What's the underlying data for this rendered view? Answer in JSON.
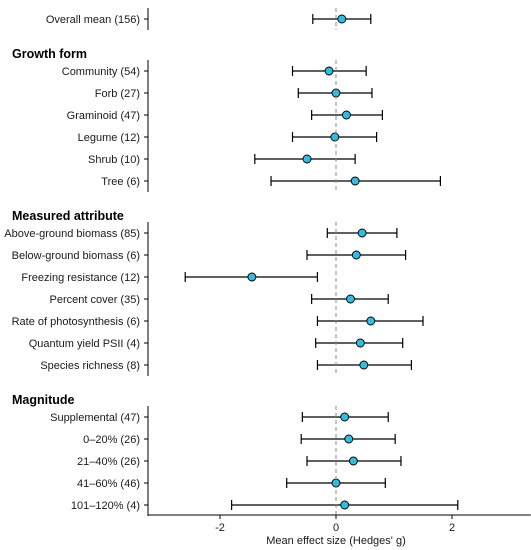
{
  "chart_data": {
    "type": "forest",
    "xlabel": "Mean effect size (Hedges' g)",
    "xlim": [
      -3.3,
      3.3
    ],
    "x_ticks": [
      -2,
      0,
      2
    ],
    "x_tick_labels": [
      "-2",
      "0",
      "2"
    ],
    "reference_line": 0,
    "marker_color": "#33bbe0",
    "groups": [
      {
        "title": "",
        "rows": [
          {
            "label": "Overall mean (156)",
            "mean": 0.1,
            "lower": -0.4,
            "upper": 0.6
          }
        ]
      },
      {
        "title": "Growth form",
        "rows": [
          {
            "label": "Community (54)",
            "mean": -0.12,
            "lower": -0.75,
            "upper": 0.52
          },
          {
            "label": "Forb (27)",
            "mean": 0.0,
            "lower": -0.65,
            "upper": 0.62
          },
          {
            "label": "Graminoid (47)",
            "mean": 0.18,
            "lower": -0.42,
            "upper": 0.8
          },
          {
            "label": "Legume (12)",
            "mean": -0.02,
            "lower": -0.75,
            "upper": 0.7
          },
          {
            "label": "Shrub (10)",
            "mean": -0.5,
            "lower": -1.4,
            "upper": 0.33
          },
          {
            "label": "Tree (6)",
            "mean": 0.33,
            "lower": -1.12,
            "upper": 1.8
          }
        ]
      },
      {
        "title": "Measured attribute",
        "rows": [
          {
            "label": "Above-ground biomass (85)",
            "mean": 0.45,
            "lower": -0.15,
            "upper": 1.05
          },
          {
            "label": "Below-ground biomass (6)",
            "mean": 0.35,
            "lower": -0.5,
            "upper": 1.2
          },
          {
            "label": "Freezing resistance (12)",
            "mean": -1.45,
            "lower": -2.6,
            "upper": -0.32
          },
          {
            "label": "Percent cover (35)",
            "mean": 0.25,
            "lower": -0.42,
            "upper": 0.9
          },
          {
            "label": "Rate of photosynthesis (6)",
            "mean": 0.6,
            "lower": -0.32,
            "upper": 1.5
          },
          {
            "label": "Quantum yield PSII (4)",
            "mean": 0.42,
            "lower": -0.35,
            "upper": 1.15
          },
          {
            "label": "Species richness (8)",
            "mean": 0.48,
            "lower": -0.32,
            "upper": 1.3
          }
        ]
      },
      {
        "title": "Magnitude",
        "rows": [
          {
            "label": "Supplemental (47)",
            "mean": 0.15,
            "lower": -0.58,
            "upper": 0.9
          },
          {
            "label": "0–20% (26)",
            "mean": 0.22,
            "lower": -0.6,
            "upper": 1.02
          },
          {
            "label": "21–40% (26)",
            "mean": 0.3,
            "lower": -0.5,
            "upper": 1.12
          },
          {
            "label": "41–60% (46)",
            "mean": 0.0,
            "lower": -0.85,
            "upper": 0.85
          },
          {
            "label": "101–120% (4)",
            "mean": 0.15,
            "lower": -1.8,
            "upper": 2.1
          }
        ]
      }
    ]
  }
}
